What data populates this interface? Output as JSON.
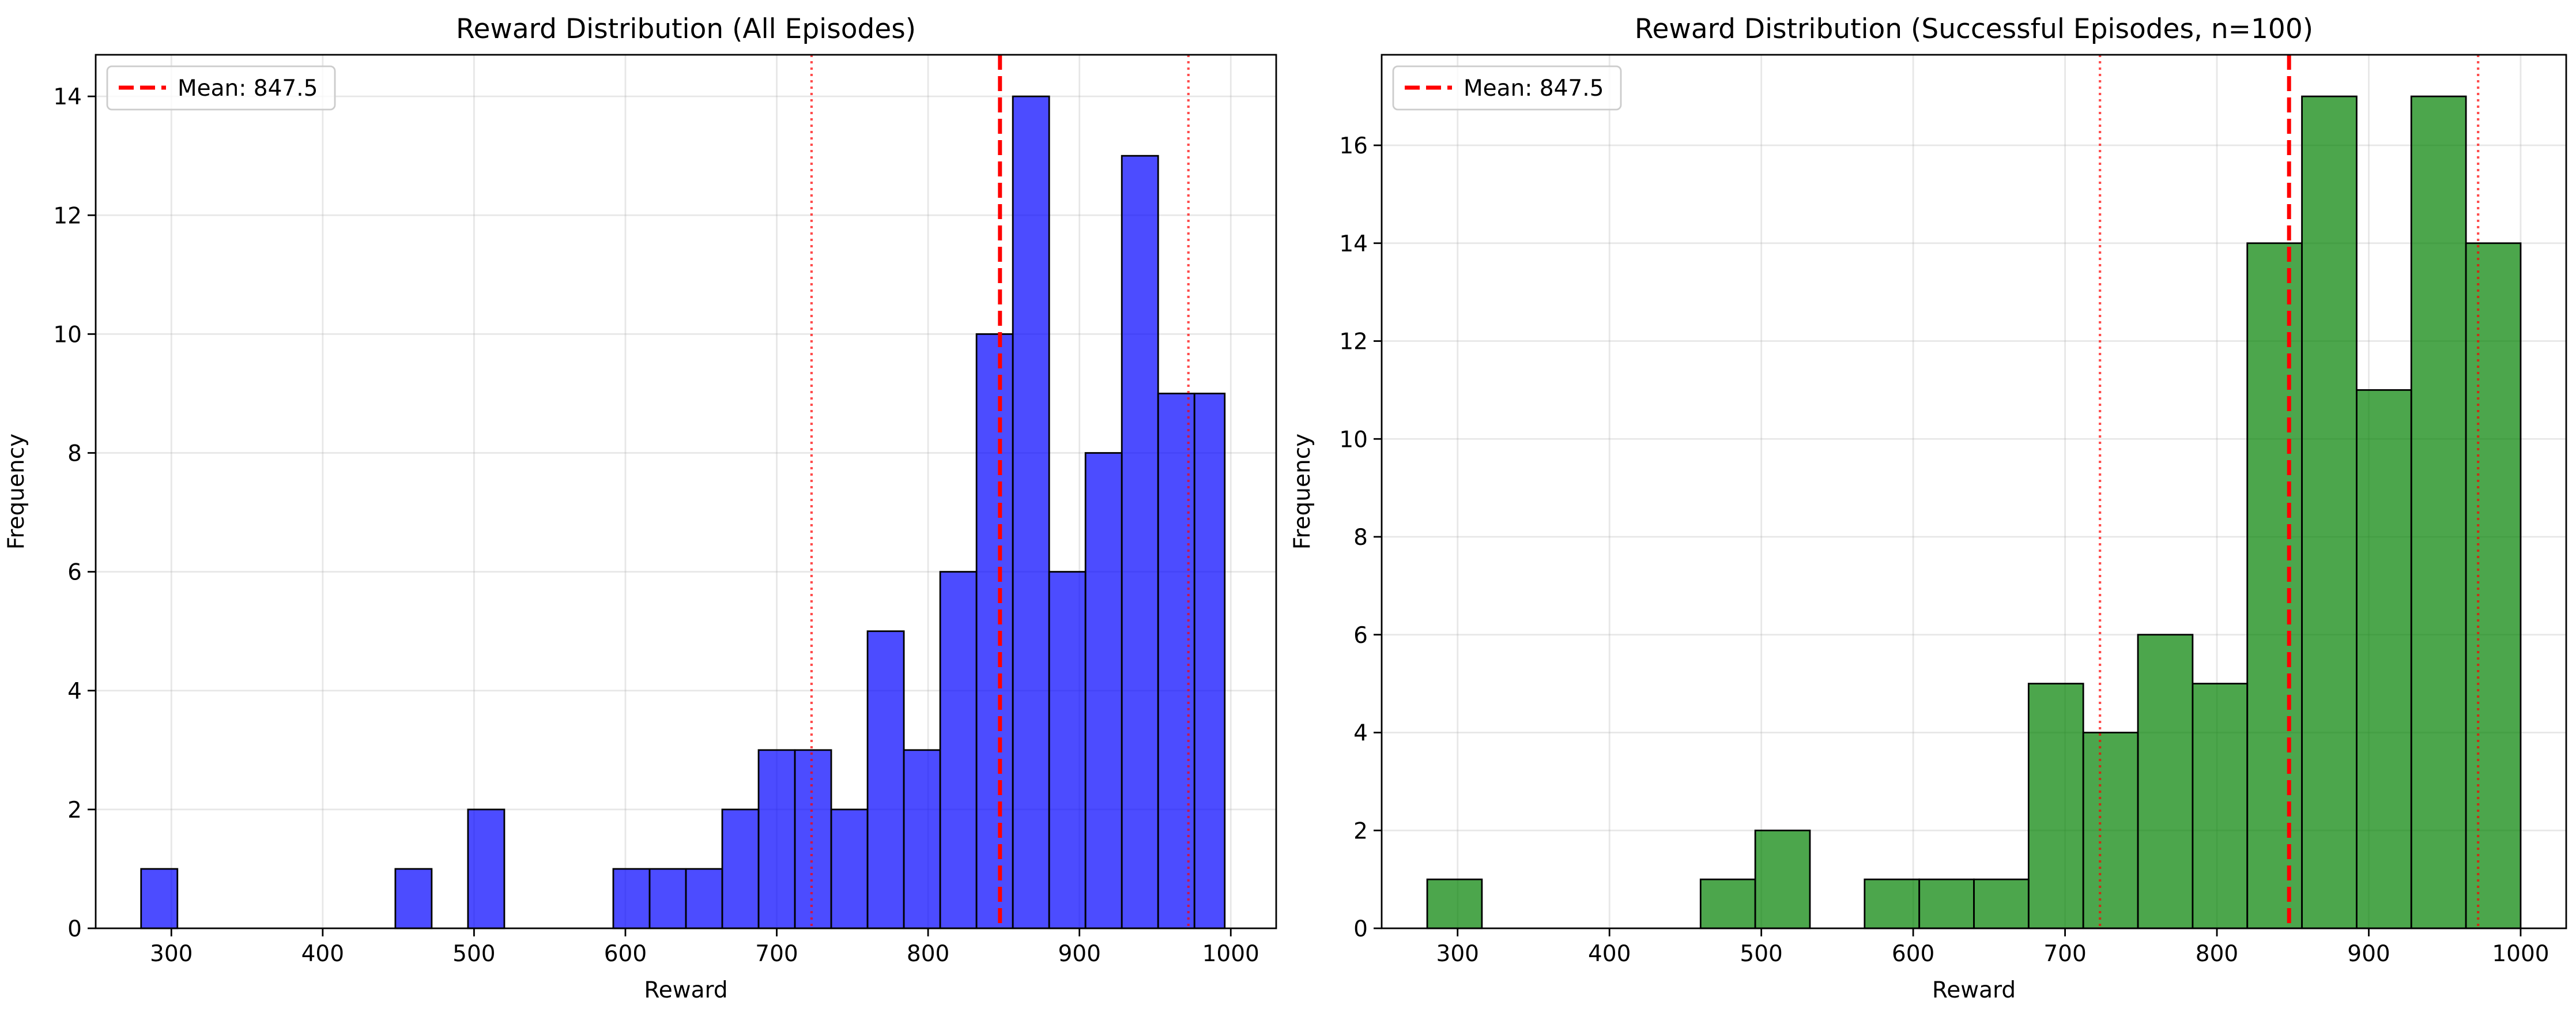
{
  "chart_data": [
    {
      "type": "bar",
      "title": "Reward Distribution (All Episodes)",
      "xlabel": "Reward",
      "ylabel": "Frequency",
      "xlim": [
        250,
        1030
      ],
      "ylim": [
        0,
        14.7
      ],
      "xticks": [
        300,
        400,
        500,
        600,
        700,
        800,
        900,
        1000
      ],
      "yticks": [
        0,
        2,
        4,
        6,
        8,
        10,
        12,
        14
      ],
      "grid": true,
      "legend_position": "top-left",
      "bar_color": "#0000ff",
      "edge_color": "#000000",
      "bin_edges": [
        280,
        304,
        328,
        352,
        376,
        400,
        424,
        448,
        472,
        496,
        520,
        544,
        568,
        592,
        616,
        640,
        664,
        688,
        712,
        736,
        760,
        784,
        808,
        832,
        856,
        880,
        904,
        928,
        952,
        976,
        996
      ],
      "values": [
        1,
        0,
        0,
        0,
        0,
        0,
        0,
        1,
        0,
        2,
        0,
        0,
        0,
        1,
        1,
        1,
        2,
        3,
        3,
        2,
        5,
        3,
        6,
        10,
        14,
        6,
        8,
        13,
        9,
        9
      ],
      "mean_line": {
        "value": 847.5,
        "label": "Mean: 847.5",
        "color": "#ff0000",
        "style": "dashed"
      },
      "ref_lines": [
        {
          "value": 723,
          "color": "#ff0000",
          "style": "dotted"
        },
        {
          "value": 972,
          "color": "#ff0000",
          "style": "dotted"
        }
      ]
    },
    {
      "type": "bar",
      "title": "Reward Distribution (Successful Episodes, n=100)",
      "xlabel": "Reward",
      "ylabel": "Frequency",
      "xlim": [
        250,
        1030
      ],
      "ylim": [
        0,
        17.85
      ],
      "xticks": [
        300,
        400,
        500,
        600,
        700,
        800,
        900,
        1000
      ],
      "yticks": [
        0,
        2,
        4,
        6,
        8,
        10,
        12,
        14,
        16
      ],
      "grid": true,
      "legend_position": "top-left",
      "bar_color": "#008000",
      "edge_color": "#000000",
      "bin_edges": [
        280,
        316,
        352,
        388,
        424,
        460,
        496,
        532,
        568,
        604,
        640,
        676,
        712,
        748,
        784,
        820,
        856,
        892,
        928,
        964,
        1000
      ],
      "values": [
        1,
        0,
        0,
        0,
        0,
        1,
        2,
        0,
        1,
        1,
        1,
        5,
        4,
        6,
        5,
        14,
        17,
        11,
        17,
        14
      ],
      "mean_line": {
        "value": 847.5,
        "label": "Mean: 847.5",
        "color": "#ff0000",
        "style": "dashed"
      },
      "ref_lines": [
        {
          "value": 723,
          "color": "#ff0000",
          "style": "dotted"
        },
        {
          "value": 972,
          "color": "#ff0000",
          "style": "dotted"
        }
      ]
    }
  ]
}
